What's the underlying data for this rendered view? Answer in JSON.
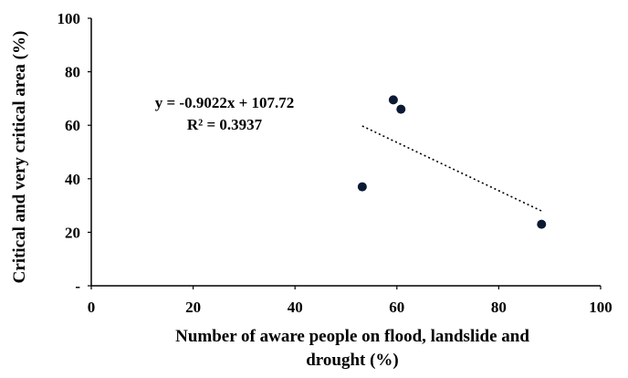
{
  "chart_data": {
    "type": "scatter",
    "title": "",
    "xlabel_lines": [
      "Number of aware people on flood, landslide and",
      "drought (%)"
    ],
    "ylabel": "Critical and very critical area (%)",
    "xlim": [
      0,
      100
    ],
    "ylim": [
      0,
      100
    ],
    "x_ticks": [
      {
        "value": 0,
        "label": "0"
      },
      {
        "value": 20,
        "label": "20"
      },
      {
        "value": 40,
        "label": "40"
      },
      {
        "value": 60,
        "label": "60"
      },
      {
        "value": 80,
        "label": "80"
      },
      {
        "value": 100,
        "label": "100"
      }
    ],
    "y_ticks": [
      {
        "value": 0,
        "label": "-"
      },
      {
        "value": 20,
        "label": "20"
      },
      {
        "value": 40,
        "label": "40"
      },
      {
        "value": 60,
        "label": "60"
      },
      {
        "value": 80,
        "label": "80"
      },
      {
        "value": 100,
        "label": "100"
      }
    ],
    "grid": false,
    "legend": "none",
    "points": [
      {
        "x": 53.2,
        "y": 37
      },
      {
        "x": 59.3,
        "y": 69.5
      },
      {
        "x": 60.8,
        "y": 66
      },
      {
        "x": 88.4,
        "y": 23
      }
    ],
    "trendline": {
      "slope": -0.9022,
      "intercept": 107.72,
      "x_range": [
        53.2,
        88.4
      ],
      "equation_label": "y = -0.9022x + 107.72",
      "r2_label": "R² = 0.3937"
    },
    "colors": {
      "point": "#0b1a33",
      "axis": "#000000",
      "trendline": "#000000"
    }
  }
}
